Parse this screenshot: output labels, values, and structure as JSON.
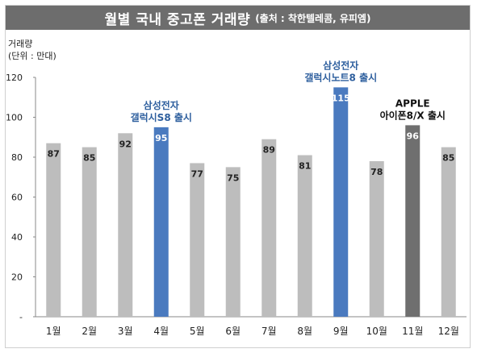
{
  "title": "월별 국내 중고폰 거래량",
  "source": "(출처 : 착한텔레콤, 유피엠)",
  "y_axis_title": "거래량",
  "y_axis_unit": "(단위 : 만대)",
  "colors": {
    "bar_default": "#bdbdbd",
    "bar_samsung": "#4a7abf",
    "bar_apple": "#6f6f6f",
    "title_bg": "#6d6d6d",
    "samsung_text": "#2e5f9e",
    "apple_text": "#111111"
  },
  "chart_data": {
    "type": "bar",
    "categories": [
      "1월",
      "2월",
      "3월",
      "4월",
      "5월",
      "6월",
      "7월",
      "8월",
      "9월",
      "10월",
      "11월",
      "12월"
    ],
    "values": [
      87,
      85,
      92,
      95,
      77,
      75,
      89,
      81,
      115,
      78,
      96,
      85
    ],
    "highlight": [
      "default",
      "default",
      "default",
      "samsung",
      "default",
      "default",
      "default",
      "default",
      "samsung",
      "default",
      "apple",
      "default"
    ],
    "ylim": [
      0,
      120
    ],
    "yticks": [
      {
        "value": 0,
        "label": "-"
      },
      {
        "value": 20,
        "label": "20"
      },
      {
        "value": 40,
        "label": "40"
      },
      {
        "value": 60,
        "label": "60"
      },
      {
        "value": 80,
        "label": "80"
      },
      {
        "value": 100,
        "label": "100"
      },
      {
        "value": 120,
        "label": "120"
      }
    ],
    "grid": false,
    "annotations": [
      {
        "category": "4월",
        "lines": [
          "삼성전자",
          "갤럭시S8 출시"
        ],
        "style": "samsung"
      },
      {
        "category": "9월",
        "lines": [
          "삼성전자",
          "갤럭시노트8 출시"
        ],
        "style": "samsung"
      },
      {
        "category": "11월",
        "lines": [
          "APPLE",
          "아이폰8/X 출시"
        ],
        "style": "apple"
      }
    ]
  }
}
